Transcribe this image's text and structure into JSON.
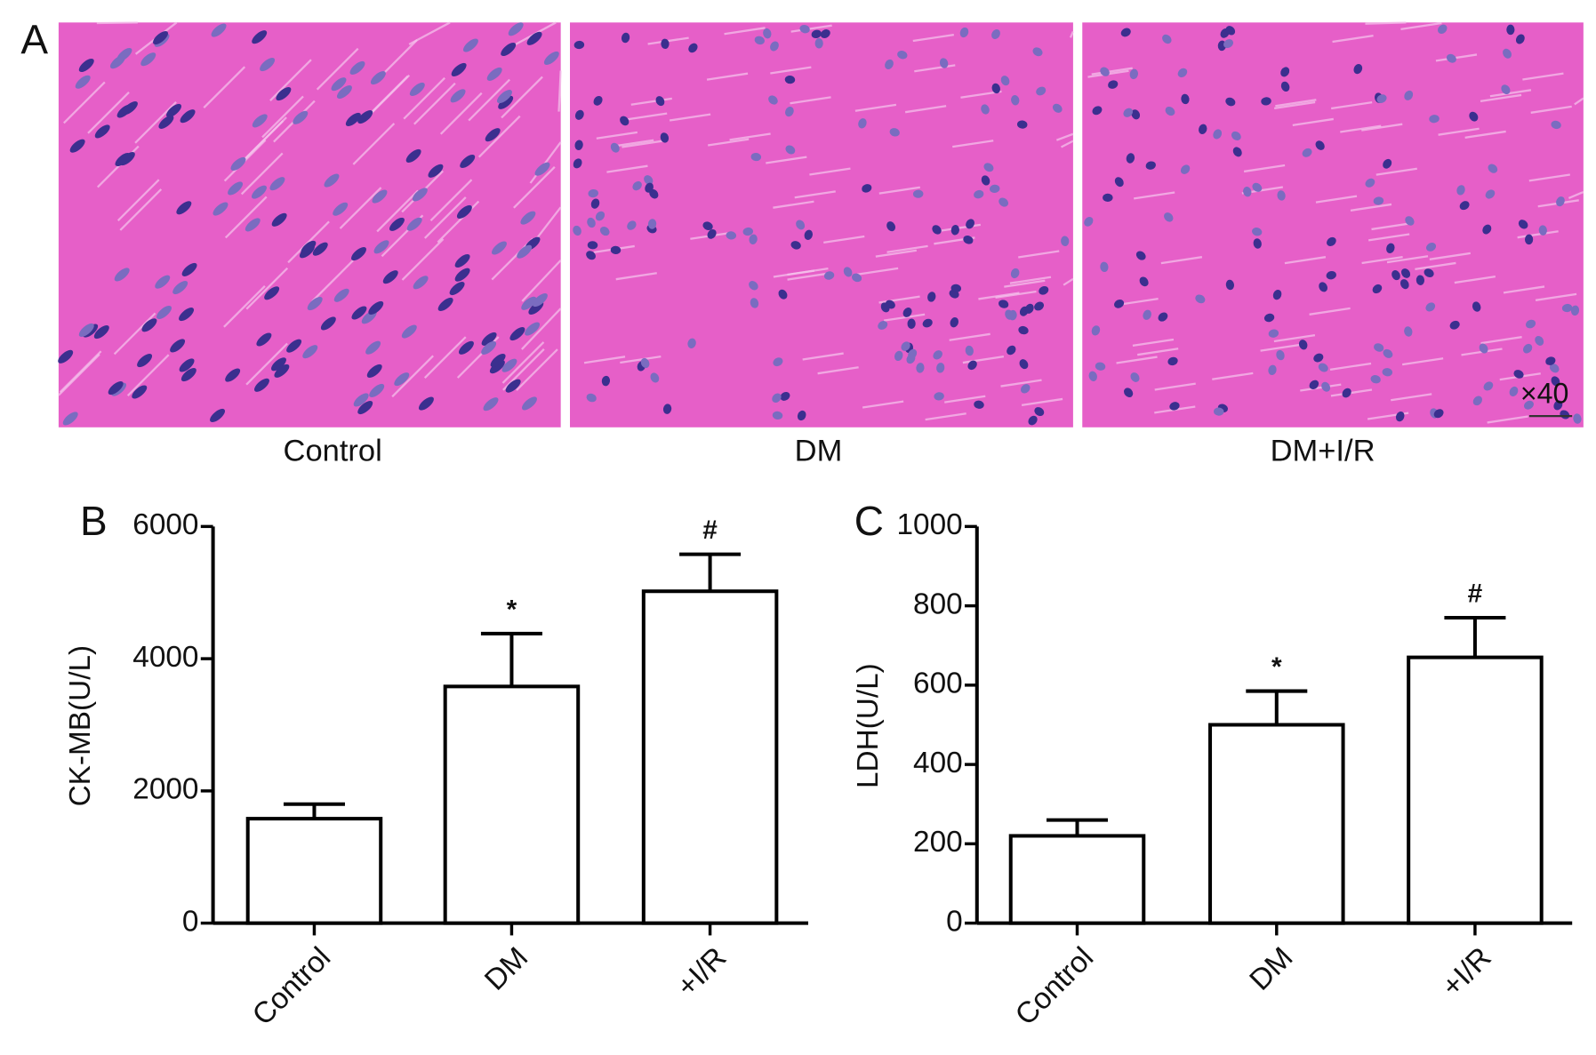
{
  "panel_a": {
    "label": "A",
    "captions": [
      "Control",
      "DM",
      "DM+I/R"
    ],
    "magnification": "×40"
  },
  "chart_data": [
    {
      "type": "bar",
      "panel_label": "B",
      "ylabel": "CK-MB(U/L)",
      "categories": [
        "Control",
        "DM",
        "+I/R"
      ],
      "values": [
        1580,
        3580,
        5020
      ],
      "errors": [
        220,
        800,
        560
      ],
      "value_annotations": [
        null,
        "*",
        "#"
      ],
      "color": "#ffffff",
      "ylim": [
        0,
        6000
      ],
      "yticks": [
        0,
        2000,
        4000,
        6000
      ]
    },
    {
      "type": "bar",
      "panel_label": "C",
      "ylabel": "LDH(U/L)",
      "categories": [
        "Control",
        "DM",
        "+I/R"
      ],
      "values": [
        220,
        500,
        670
      ],
      "errors": [
        40,
        85,
        100
      ],
      "value_annotations": [
        null,
        "*",
        "#"
      ],
      "color": "#ffffff",
      "ylim": [
        0,
        1000
      ],
      "yticks": [
        0,
        200,
        400,
        600,
        800,
        1000
      ]
    }
  ]
}
